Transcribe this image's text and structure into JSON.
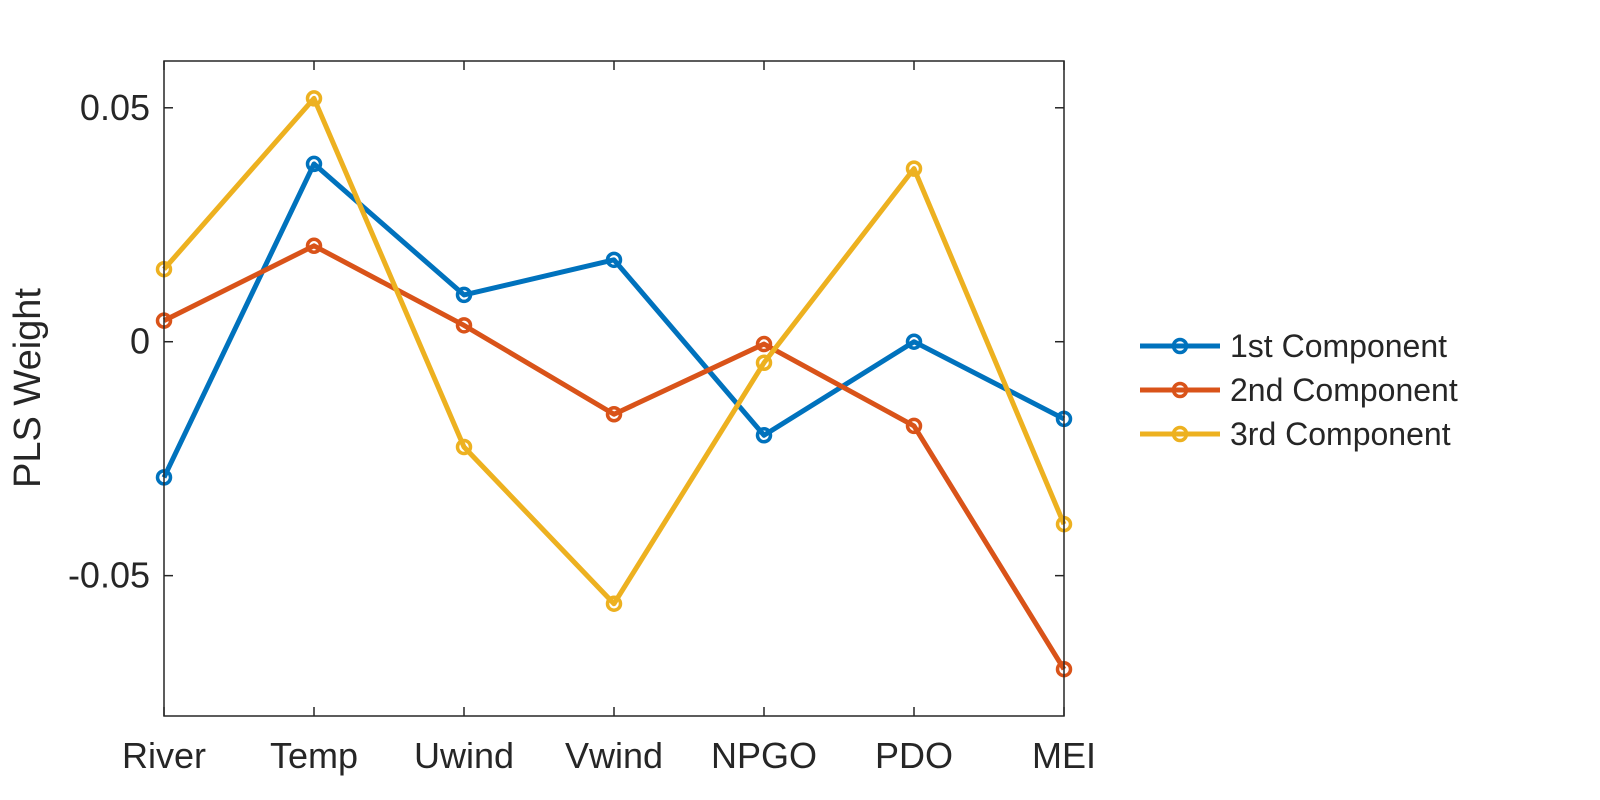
{
  "chart_data": {
    "type": "line",
    "title": "",
    "xlabel": "",
    "ylabel": "PLS Weight",
    "categories": [
      "River",
      "Temp",
      "Uwind",
      "Vwind",
      "NPGO",
      "PDO",
      "MEI"
    ],
    "ylim": [
      -0.08,
      0.06
    ],
    "yticks": [
      -0.05,
      0,
      0.05
    ],
    "ytick_labels": [
      "-0.05",
      "0",
      "0.05"
    ],
    "grid": false,
    "legend_position": "right",
    "marker": "circle",
    "series": [
      {
        "name": "1st Component",
        "color": "#0072BD",
        "values": [
          -0.029,
          0.038,
          0.01,
          0.0175,
          -0.02,
          0.0,
          -0.0165
        ]
      },
      {
        "name": "2nd Component",
        "color": "#D95319",
        "values": [
          0.0045,
          0.0205,
          0.0035,
          -0.0155,
          -0.0005,
          -0.018,
          -0.07
        ]
      },
      {
        "name": "3rd Component",
        "color": "#EDB120",
        "values": [
          0.0155,
          0.052,
          -0.0225,
          -0.056,
          -0.0045,
          0.037,
          -0.039
        ]
      }
    ]
  }
}
